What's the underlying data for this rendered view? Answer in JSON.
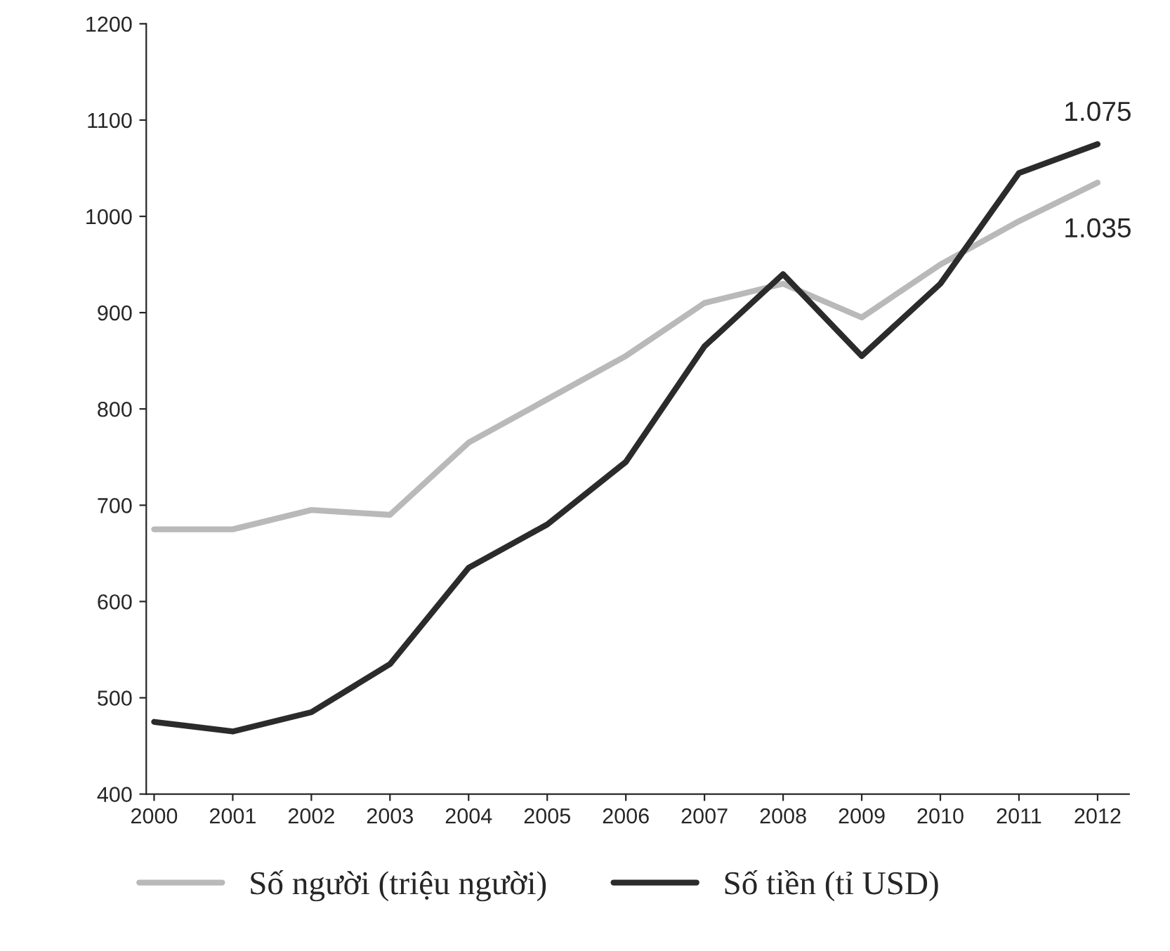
{
  "chart_data": {
    "type": "line",
    "categories": [
      "2000",
      "2001",
      "2002",
      "2003",
      "2004",
      "2005",
      "2006",
      "2007",
      "2008",
      "2009",
      "2010",
      "2011",
      "2012"
    ],
    "series": [
      {
        "name": "Số người (triệu người)",
        "color": "#b9b9b9",
        "values": [
          675,
          675,
          695,
          690,
          765,
          810,
          855,
          910,
          930,
          895,
          950,
          995,
          1035
        ]
      },
      {
        "name": "Số tiền (tỉ USD)",
        "color": "#2b2b2b",
        "values": [
          475,
          465,
          485,
          535,
          635,
          680,
          745,
          865,
          940,
          855,
          930,
          1045,
          1075
        ]
      }
    ],
    "ylim": [
      400,
      1200
    ],
    "yticks": [
      400,
      500,
      600,
      700,
      800,
      900,
      1000,
      1100,
      1200
    ],
    "annotations": [
      {
        "text": "1.075",
        "x": "2012",
        "y": 1075
      },
      {
        "text": "1.035",
        "x": "2012",
        "y": 1035
      }
    ],
    "legend": "bottom",
    "grid": false,
    "marker": "none",
    "line_style": "solid"
  }
}
